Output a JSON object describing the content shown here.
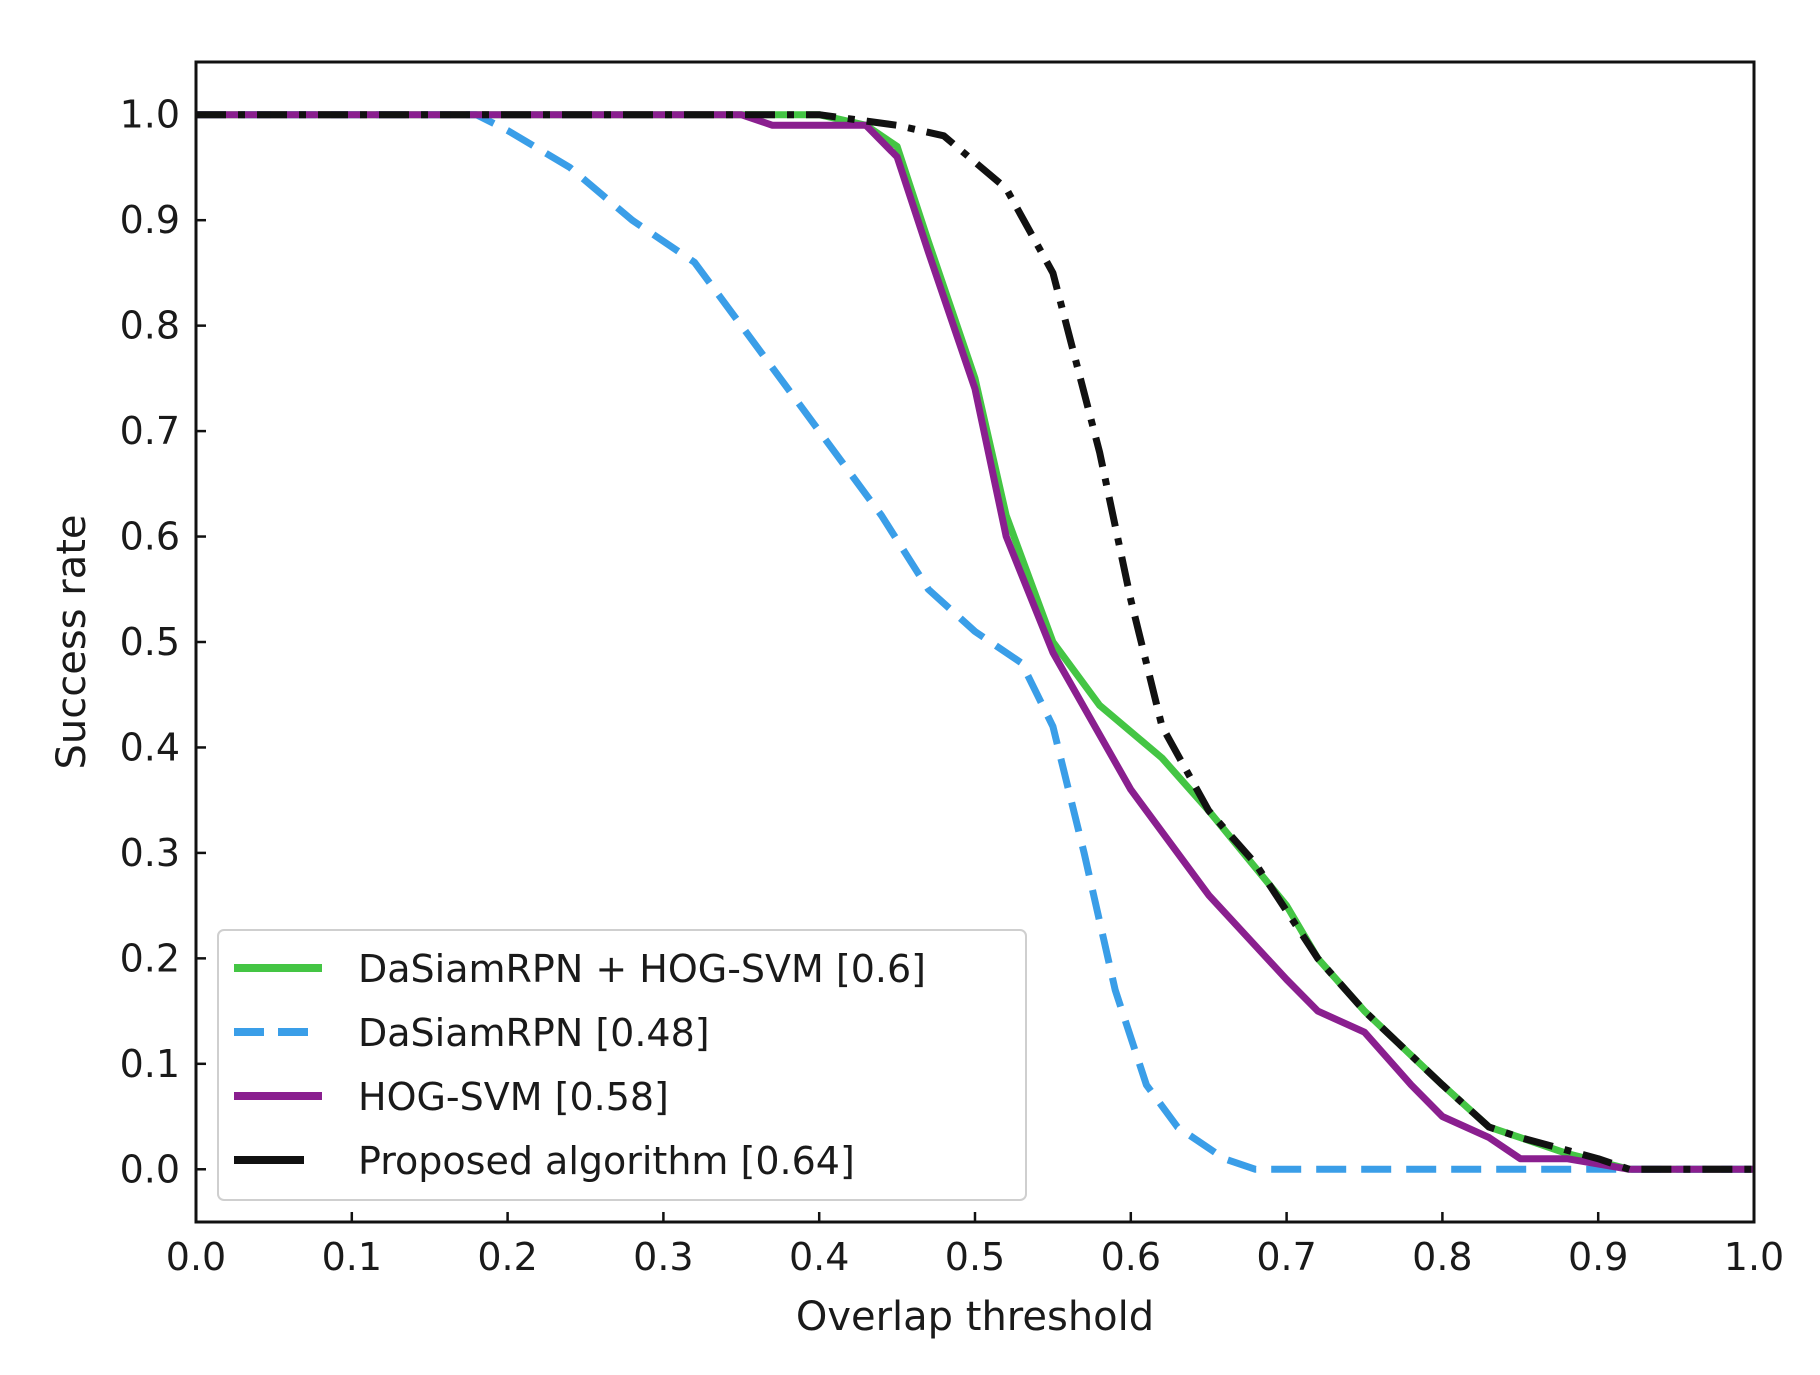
{
  "chart_data": {
    "type": "line",
    "title": "",
    "xlabel": "Overlap threshold",
    "ylabel": "Success rate",
    "xlim": [
      0.0,
      1.0
    ],
    "ylim": [
      -0.05,
      1.05
    ],
    "xticks": [
      "0.0",
      "0.1",
      "0.2",
      "0.3",
      "0.4",
      "0.5",
      "0.6",
      "0.7",
      "0.8",
      "0.9",
      "1.0"
    ],
    "yticks": [
      "0.0",
      "0.1",
      "0.2",
      "0.3",
      "0.4",
      "0.5",
      "0.6",
      "0.7",
      "0.8",
      "0.9",
      "1.0"
    ],
    "grid": false,
    "legend_position": "lower-left",
    "series": [
      {
        "name": "DaSiamRPN + HOG-SVM [0.6]",
        "color": "#44c544",
        "style": "solid",
        "x": [
          0.0,
          0.35,
          0.4,
          0.43,
          0.45,
          0.47,
          0.5,
          0.52,
          0.55,
          0.58,
          0.62,
          0.65,
          0.7,
          0.72,
          0.75,
          0.8,
          0.83,
          0.85,
          0.88,
          0.92,
          1.0
        ],
        "y": [
          1.0,
          1.0,
          1.0,
          0.99,
          0.97,
          0.88,
          0.75,
          0.62,
          0.5,
          0.44,
          0.39,
          0.34,
          0.25,
          0.2,
          0.15,
          0.08,
          0.04,
          0.03,
          0.015,
          0.0,
          0.0
        ]
      },
      {
        "name": "DaSiamRPN [0.48]",
        "color": "#3a9ee8",
        "style": "dashed",
        "x": [
          0.0,
          0.18,
          0.2,
          0.24,
          0.28,
          0.32,
          0.36,
          0.4,
          0.44,
          0.47,
          0.5,
          0.53,
          0.55,
          0.57,
          0.59,
          0.61,
          0.63,
          0.66,
          0.68,
          1.0
        ],
        "y": [
          1.0,
          1.0,
          0.985,
          0.95,
          0.9,
          0.86,
          0.78,
          0.7,
          0.62,
          0.55,
          0.51,
          0.48,
          0.42,
          0.3,
          0.17,
          0.08,
          0.04,
          0.01,
          0.0,
          0.0
        ]
      },
      {
        "name": "HOG-SVM [0.58]",
        "color": "#8a1f8f",
        "style": "solid",
        "x": [
          0.0,
          0.35,
          0.37,
          0.4,
          0.43,
          0.45,
          0.47,
          0.5,
          0.52,
          0.55,
          0.6,
          0.65,
          0.7,
          0.72,
          0.75,
          0.78,
          0.8,
          0.83,
          0.85,
          0.88,
          0.92,
          1.0
        ],
        "y": [
          1.0,
          1.0,
          0.99,
          0.99,
          0.99,
          0.96,
          0.87,
          0.74,
          0.6,
          0.49,
          0.36,
          0.26,
          0.18,
          0.15,
          0.13,
          0.08,
          0.05,
          0.03,
          0.01,
          0.01,
          0.0,
          0.0
        ]
      },
      {
        "name": "Proposed algorithm [0.64]",
        "color": "#111111",
        "style": "dashdot",
        "x": [
          0.0,
          0.4,
          0.45,
          0.48,
          0.52,
          0.55,
          0.58,
          0.6,
          0.62,
          0.65,
          0.68,
          0.72,
          0.75,
          0.8,
          0.83,
          0.85,
          0.9,
          0.92,
          1.0
        ],
        "y": [
          1.0,
          1.0,
          0.99,
          0.98,
          0.93,
          0.85,
          0.68,
          0.54,
          0.42,
          0.34,
          0.29,
          0.2,
          0.15,
          0.08,
          0.04,
          0.03,
          0.01,
          0.0,
          0.0
        ]
      }
    ]
  }
}
